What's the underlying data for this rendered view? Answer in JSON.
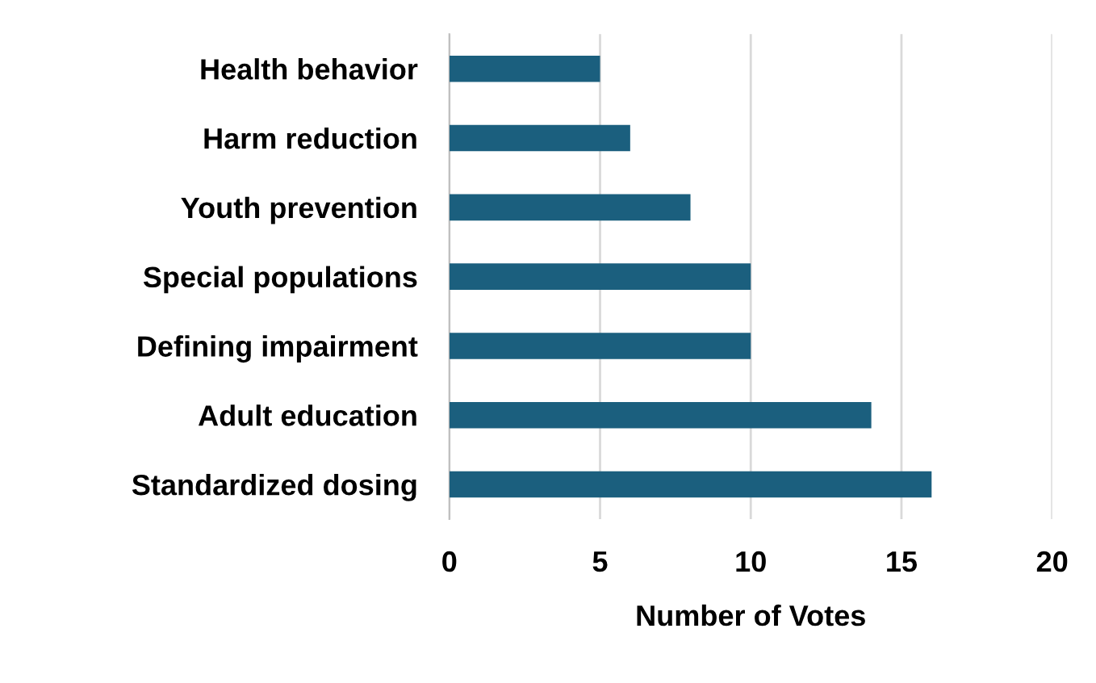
{
  "chart_data": {
    "type": "bar",
    "orientation": "horizontal",
    "xlabel": "Number of Votes",
    "categories": [
      "Health behavior",
      "Harm reduction",
      "Youth prevention",
      "Special populations",
      "Defining impairment",
      "Adult education",
      "Standardized dosing"
    ],
    "values": [
      5,
      6,
      8,
      10,
      10,
      14,
      16
    ],
    "color": "#1b5f7e",
    "xlim": [
      0,
      20
    ],
    "xticks": [
      0,
      5,
      10,
      15,
      20
    ],
    "grid": "x",
    "legend": false
  }
}
